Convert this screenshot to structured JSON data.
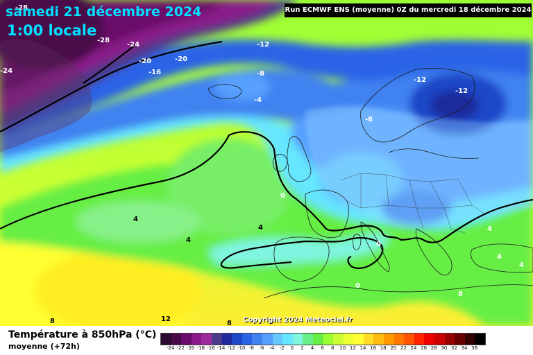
{
  "header": {
    "date": "samedi 21 décembre 2024",
    "time": "1:00 locale",
    "run": "Run ECMWF ENS (moyenne) 0Z du mercredi 18 décembre 2024"
  },
  "copyright": "Copyright 2024 Meteociel.fr",
  "footer": {
    "title": "Température à 850hPa (°C)",
    "subtitle": "moyenne   (+72h)"
  },
  "colors": {
    "extreme_cold": "#4a0a4a",
    "very_cold": "#7a1a7a",
    "cold_purple": "#8e2a8e",
    "deep_blue": "#1e2a9c",
    "blue": "#2a4be0",
    "mid_blue": "#3f7df0",
    "light_blue": "#5aa6ff",
    "cyan": "#66e0ff",
    "aqua": "#7ff5e0",
    "green": "#66ee66",
    "lime": "#aaff33",
    "yellow": "#ffff33",
    "land_tint": "#9ad7ff",
    "contour": "#000000",
    "label_white": "#ffffff"
  },
  "legend": {
    "ticks": [
      "-24",
      "-22",
      "-20",
      "-18",
      "-16",
      "-14",
      "-12",
      "-10",
      "-8",
      "-6",
      "-4",
      "-2",
      "0",
      "2",
      "4",
      "6",
      "8",
      "10",
      "12",
      "14",
      "16",
      "18",
      "20",
      "22",
      "24",
      "26",
      "28",
      "30",
      "32",
      "34",
      "36"
    ],
    "swatches": [
      "#2a0a2e",
      "#4a0a4a",
      "#6a0a6a",
      "#8a1a8a",
      "#9b2b9b",
      "#4b3b8b",
      "#1e2a9c",
      "#1e46c8",
      "#2a64e6",
      "#3f82f0",
      "#58a0ff",
      "#66c8ff",
      "#66e6ff",
      "#7ff5e0",
      "#66ee88",
      "#66ee44",
      "#99ff33",
      "#ccff33",
      "#eeff33",
      "#ffff33",
      "#ffdd22",
      "#ffbb11",
      "#ff9900",
      "#ff7700",
      "#ff5500",
      "#ff2200",
      "#ee0000",
      "#cc0000",
      "#990000",
      "#660000",
      "#330000",
      "#000000"
    ]
  },
  "isotherm_labels": [
    {
      "text": "-28",
      "color": "white"
    },
    {
      "text": "-28",
      "color": "white"
    },
    {
      "text": "-24",
      "color": "white"
    },
    {
      "text": "-20",
      "color": "white"
    },
    {
      "text": "-20",
      "color": "white"
    },
    {
      "text": "-16",
      "color": "white"
    },
    {
      "text": "-24",
      "color": "white"
    },
    {
      "text": "-12",
      "color": "white"
    },
    {
      "text": "-8",
      "color": "white"
    },
    {
      "text": "-4",
      "color": "white"
    },
    {
      "text": "-12",
      "color": "white"
    },
    {
      "text": "-12",
      "color": "white"
    },
    {
      "text": "-8",
      "color": "white"
    },
    {
      "text": "0",
      "color": "white"
    },
    {
      "text": "4",
      "color": "black"
    },
    {
      "text": "4",
      "color": "black"
    },
    {
      "text": "4",
      "color": "black"
    },
    {
      "text": "0",
      "color": "white"
    },
    {
      "text": "0",
      "color": "white"
    },
    {
      "text": "4",
      "color": "white"
    },
    {
      "text": "4",
      "color": "white"
    },
    {
      "text": "4",
      "color": "white"
    },
    {
      "text": "8",
      "color": "white"
    },
    {
      "text": "8",
      "color": "black"
    },
    {
      "text": "12",
      "color": "black"
    },
    {
      "text": "8",
      "color": "black"
    }
  ]
}
